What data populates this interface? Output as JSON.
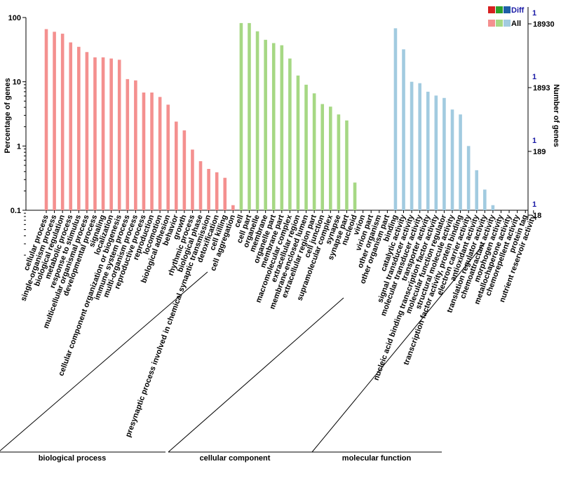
{
  "chart_data": {
    "type": "bar",
    "y_scale": "log",
    "ylim": [
      0.1,
      100
    ],
    "ylabel": "Percentage of genes",
    "ylabel_right": "Number of genes",
    "left_ticks": [
      "100",
      "10",
      "1",
      "0.1"
    ],
    "right_ticks_all": [
      "18930",
      "1893",
      "189",
      "18"
    ],
    "right_ticks_diff": [
      "1",
      "1",
      "1",
      "1"
    ],
    "legend": {
      "diff": "Diff",
      "all": "All"
    },
    "grid": false,
    "groups": [
      {
        "name": "biological process",
        "color": "#f4908f",
        "categories": [
          "cellular process",
          "single-organism process",
          "biological regulation",
          "metabolic process",
          "response to stimulus",
          "multicellular organismal process",
          "developmental process",
          "signaling",
          "localization",
          "cellular component organization or biogenesis",
          "immune system process",
          "multi-organism process",
          "reproductive process",
          "reproduction",
          "locomotion",
          "biological adhesion",
          "behavior",
          "growth",
          "rhythmic process",
          "biological phase",
          "presynaptic process involved in chemical synaptic transmission",
          "detoxification",
          "cell killing",
          "cell aggregation"
        ],
        "values": [
          66,
          60,
          56,
          41,
          35,
          29,
          24,
          24,
          23,
          22,
          11,
          10.5,
          6.8,
          6.8,
          5.8,
          4.4,
          2.4,
          1.75,
          0.88,
          0.58,
          0.44,
          0.39,
          0.32,
          0.12
        ]
      },
      {
        "name": "cellular component",
        "color": "#a6d884",
        "categories": [
          "cell",
          "cell part",
          "organelle",
          "membrane",
          "organelle part",
          "membrane part",
          "macromolecular complex",
          "extracellular region",
          "membrane-enclosed lumen",
          "extracellular region part",
          "cell junction",
          "supramolecular complex",
          "synapse",
          "synapse part",
          "nucleoid",
          "virion",
          "virion part",
          "other organism",
          "other organism part"
        ],
        "values": [
          82,
          82,
          61,
          45,
          40,
          37,
          23,
          12.5,
          9,
          6.6,
          4.5,
          4.1,
          3.1,
          2.5,
          0.27,
          0,
          0,
          0,
          0
        ]
      },
      {
        "name": "molecular function",
        "color": "#a2cbe0",
        "categories": [
          "binding",
          "catalytic activity",
          "signal transducer activity",
          "molecular transducer activity",
          "transporter activity",
          "nucleic acid binding transcription factor activity",
          "molecular function regulator",
          "structural molecule activity",
          "transcription factor activity, protein binding",
          "electron carrier activity",
          "antioxidant activity",
          "translation regulator activity",
          "chemoattractant activity",
          "morphogen activity",
          "metallochaperone activity",
          "chemorepellent activity",
          "protein tag",
          "nutrient reservoir activity"
        ],
        "values": [
          68,
          32,
          10,
          9.5,
          7,
          6.1,
          5.6,
          3.7,
          3.1,
          1.0,
          0.42,
          0.21,
          0.12,
          0,
          0,
          0,
          0,
          0
        ]
      }
    ],
    "diff_colors": [
      "#d62020",
      "#2ca02c",
      "#1f5fa8"
    ]
  }
}
